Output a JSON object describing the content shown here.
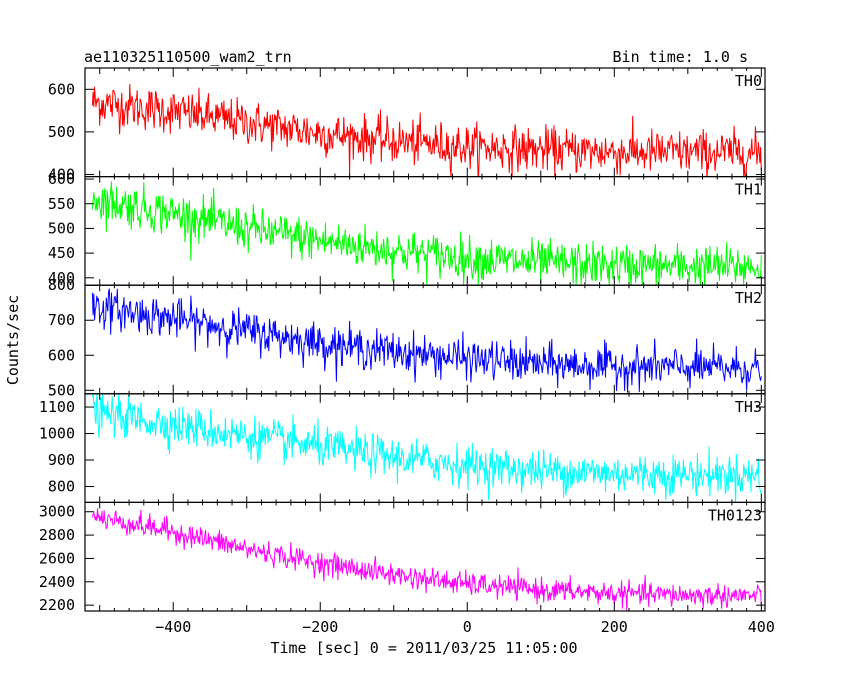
{
  "header": {
    "title": "ae110325110500_wam2_trn",
    "bin_time": "Bin time: 1.0 s"
  },
  "chart_data": {
    "type": "line",
    "xlabel": "Time [sec] 0 = 2011/03/25 11:05:00",
    "ylabel": "Counts/sec",
    "xlim": [
      -520,
      405
    ],
    "xticks": [
      -400,
      -200,
      0,
      200,
      400
    ],
    "x_range": [
      -510,
      400
    ],
    "bin_time": 1.0,
    "grid": false,
    "panels": [
      {
        "name": "TH0",
        "color": "#ff0000",
        "ylim": [
          395,
          650
        ],
        "yticks": [
          400,
          500,
          600
        ],
        "trend_x": [
          -510,
          -400,
          -300,
          -200,
          -100,
          0,
          100,
          200,
          300,
          400
        ],
        "trend_y": [
          570,
          548,
          522,
          497,
          478,
          465,
          458,
          453,
          452,
          450
        ],
        "noise_sd": 26
      },
      {
        "name": "TH1",
        "color": "#00ff00",
        "ylim": [
          385,
          605
        ],
        "yticks": [
          400,
          450,
          500,
          550,
          600
        ],
        "trend_x": [
          -510,
          -400,
          -300,
          -200,
          -100,
          0,
          100,
          200,
          300,
          400
        ],
        "trend_y": [
          560,
          530,
          500,
          475,
          455,
          440,
          430,
          425,
          423,
          422
        ],
        "noise_sd": 22
      },
      {
        "name": "TH2",
        "color": "#0000ff",
        "ylim": [
          490,
          800
        ],
        "yticks": [
          500,
          600,
          700,
          800
        ],
        "trend_x": [
          -510,
          -400,
          -300,
          -200,
          -100,
          0,
          100,
          200,
          300,
          400
        ],
        "trend_y": [
          740,
          705,
          670,
          635,
          610,
          590,
          575,
          568,
          565,
          562
        ],
        "noise_sd": 28
      },
      {
        "name": "TH3",
        "color": "#00ffff",
        "ylim": [
          740,
          1150
        ],
        "yticks": [
          800,
          900,
          1000,
          1100
        ],
        "trend_x": [
          -510,
          -400,
          -300,
          -200,
          -100,
          0,
          100,
          200,
          300,
          400
        ],
        "trend_y": [
          1080,
          1035,
          990,
          950,
          910,
          880,
          860,
          850,
          845,
          842
        ],
        "noise_sd": 38
      },
      {
        "name": "TH0123",
        "color": "#ff00ff",
        "ylim": [
          2150,
          3080
        ],
        "yticks": [
          2200,
          2400,
          2600,
          2800,
          3000
        ],
        "trend_x": [
          -510,
          -400,
          -300,
          -200,
          -100,
          0,
          100,
          200,
          300,
          400
        ],
        "trend_y": [
          2960,
          2830,
          2680,
          2560,
          2460,
          2380,
          2330,
          2300,
          2285,
          2280
        ],
        "noise_sd": 50
      }
    ]
  }
}
